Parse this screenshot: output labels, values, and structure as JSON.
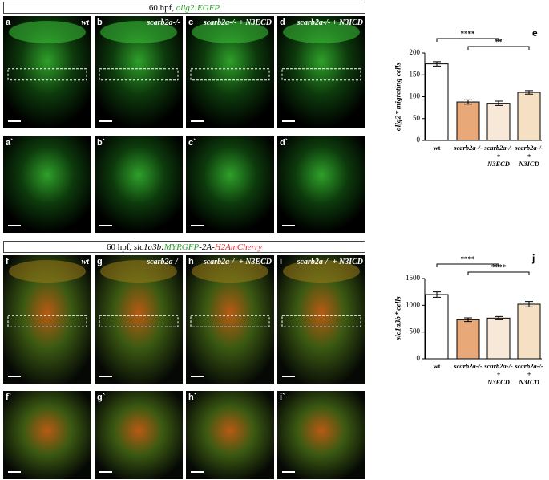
{
  "headers": [
    [
      {
        "text": "60 hpf, ",
        "color": "#000",
        "italic": false
      },
      {
        "text": "olig2:EGFP",
        "color": "#2ca02c",
        "italic": true
      }
    ],
    [
      {
        "text": "60 hpf, ",
        "color": "#000",
        "italic": false
      },
      {
        "text": "slc1a3b:",
        "color": "#000",
        "italic": true
      },
      {
        "text": "MYRGFP",
        "color": "#2ca02c",
        "italic": true
      },
      {
        "text": "-2A-",
        "color": "#000",
        "italic": true
      },
      {
        "text": "H2AmCherry",
        "color": "#d62728",
        "italic": true
      }
    ]
  ],
  "panel_rows": [
    {
      "labels": [
        "a",
        "b",
        "c",
        "d"
      ],
      "captions": [
        "wt",
        "scarb2a-/-",
        "scarb2a-/- + N3ECD",
        "scarb2a-/- + N3ICD"
      ]
    },
    {
      "labels": [
        "a`",
        "b`",
        "c`",
        "d`"
      ]
    },
    {
      "labels": [
        "f",
        "g",
        "h",
        "i"
      ],
      "captions": [
        "wt",
        "scarb2a-/-",
        "scarb2a-/- + N3ECD",
        "scarb2a-/- + N3ICD"
      ]
    },
    {
      "labels": [
        "f`",
        "g`",
        "h`",
        "i`"
      ]
    }
  ],
  "chart_data": [
    {
      "type": "bar",
      "label": "e",
      "ylabel": "olig2⁺ migrating cells",
      "categories": [
        "wt",
        "scarb2a-/-",
        "scarb2a-/-\n+\nN3ECD",
        "scarb2a-/-\n+\nN3ICD"
      ],
      "values": [
        175,
        88,
        85,
        110
      ],
      "errors": [
        5,
        5,
        5,
        4
      ],
      "colors": [
        "#ffffff",
        "#e8a878",
        "#f8e8d8",
        "#f5e0c3"
      ],
      "ylim": [
        0,
        200
      ],
      "yticks": [
        0,
        50,
        100,
        150,
        200
      ],
      "annotations": [
        {
          "text": "****",
          "from": 0,
          "to": 2
        },
        {
          "text": "**",
          "from": 1,
          "to": 3
        }
      ]
    },
    {
      "type": "bar",
      "label": "j",
      "ylabel": "slc1a3b⁺ cells",
      "categories": [
        "wt",
        "scarb2a-/-",
        "scarb2a-/-\n+\nN3ECD",
        "scarb2a-/-\n+\nN3ICD"
      ],
      "values": [
        1200,
        730,
        760,
        1020
      ],
      "errors": [
        50,
        35,
        30,
        50
      ],
      "colors": [
        "#ffffff",
        "#e8a878",
        "#f8e8d8",
        "#f5e0c3"
      ],
      "ylim": [
        0,
        1500
      ],
      "yticks": [
        0,
        500,
        1000,
        1500
      ],
      "annotations": [
        {
          "text": "****",
          "from": 0,
          "to": 2
        },
        {
          "text": "****",
          "from": 1,
          "to": 3
        }
      ]
    }
  ]
}
